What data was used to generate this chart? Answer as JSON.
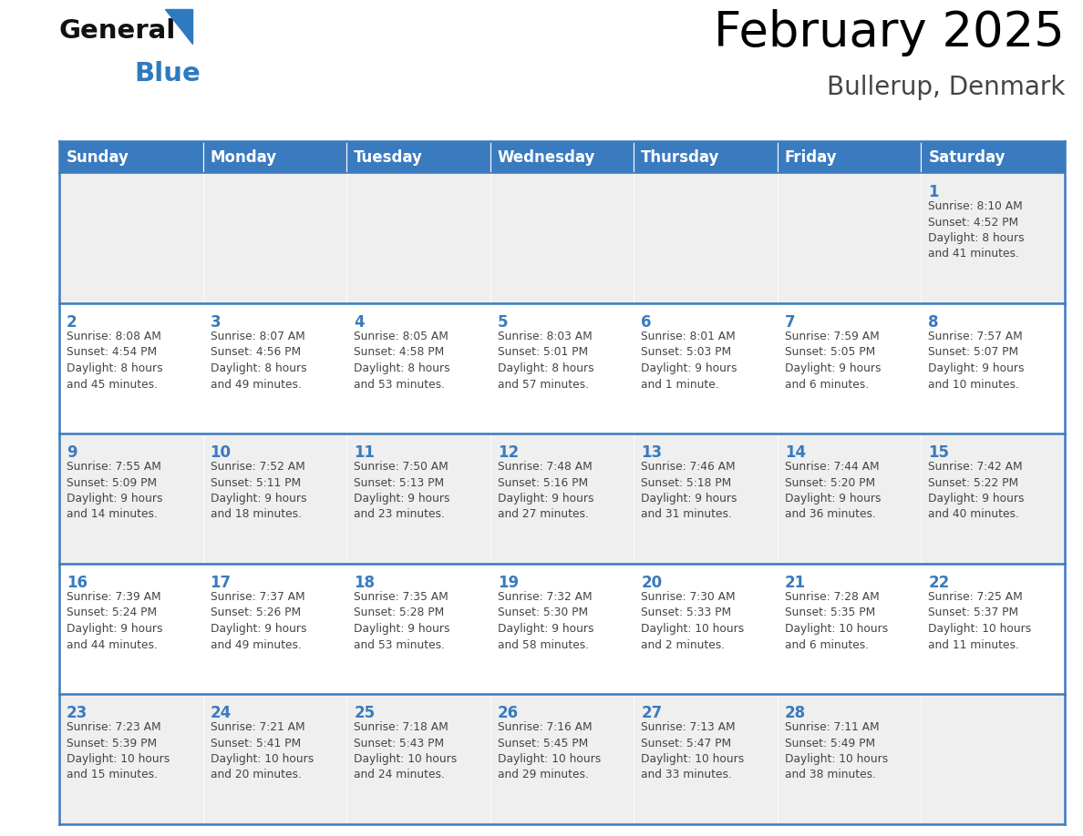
{
  "title": "February 2025",
  "subtitle": "Bullerup, Denmark",
  "days_of_week": [
    "Sunday",
    "Monday",
    "Tuesday",
    "Wednesday",
    "Thursday",
    "Friday",
    "Saturday"
  ],
  "header_bg_color": "#3a7abf",
  "header_text_color": "#ffffff",
  "cell_bg_odd": "#efefef",
  "cell_bg_even": "#ffffff",
  "day_number_color": "#3a7abf",
  "info_text_color": "#444444",
  "border_color": "#3a7abf",
  "title_color": "#000000",
  "subtitle_color": "#444444",
  "logo_general_color": "#111111",
  "logo_blue_color": "#2e7abf",
  "calendar_data": [
    [
      null,
      null,
      null,
      null,
      null,
      null,
      {
        "day": 1,
        "sunrise": "8:10 AM",
        "sunset": "4:52 PM",
        "daylight": "8 hours\nand 41 minutes."
      }
    ],
    [
      {
        "day": 2,
        "sunrise": "8:08 AM",
        "sunset": "4:54 PM",
        "daylight": "8 hours\nand 45 minutes."
      },
      {
        "day": 3,
        "sunrise": "8:07 AM",
        "sunset": "4:56 PM",
        "daylight": "8 hours\nand 49 minutes."
      },
      {
        "day": 4,
        "sunrise": "8:05 AM",
        "sunset": "4:58 PM",
        "daylight": "8 hours\nand 53 minutes."
      },
      {
        "day": 5,
        "sunrise": "8:03 AM",
        "sunset": "5:01 PM",
        "daylight": "8 hours\nand 57 minutes."
      },
      {
        "day": 6,
        "sunrise": "8:01 AM",
        "sunset": "5:03 PM",
        "daylight": "9 hours\nand 1 minute."
      },
      {
        "day": 7,
        "sunrise": "7:59 AM",
        "sunset": "5:05 PM",
        "daylight": "9 hours\nand 6 minutes."
      },
      {
        "day": 8,
        "sunrise": "7:57 AM",
        "sunset": "5:07 PM",
        "daylight": "9 hours\nand 10 minutes."
      }
    ],
    [
      {
        "day": 9,
        "sunrise": "7:55 AM",
        "sunset": "5:09 PM",
        "daylight": "9 hours\nand 14 minutes."
      },
      {
        "day": 10,
        "sunrise": "7:52 AM",
        "sunset": "5:11 PM",
        "daylight": "9 hours\nand 18 minutes."
      },
      {
        "day": 11,
        "sunrise": "7:50 AM",
        "sunset": "5:13 PM",
        "daylight": "9 hours\nand 23 minutes."
      },
      {
        "day": 12,
        "sunrise": "7:48 AM",
        "sunset": "5:16 PM",
        "daylight": "9 hours\nand 27 minutes."
      },
      {
        "day": 13,
        "sunrise": "7:46 AM",
        "sunset": "5:18 PM",
        "daylight": "9 hours\nand 31 minutes."
      },
      {
        "day": 14,
        "sunrise": "7:44 AM",
        "sunset": "5:20 PM",
        "daylight": "9 hours\nand 36 minutes."
      },
      {
        "day": 15,
        "sunrise": "7:42 AM",
        "sunset": "5:22 PM",
        "daylight": "9 hours\nand 40 minutes."
      }
    ],
    [
      {
        "day": 16,
        "sunrise": "7:39 AM",
        "sunset": "5:24 PM",
        "daylight": "9 hours\nand 44 minutes."
      },
      {
        "day": 17,
        "sunrise": "7:37 AM",
        "sunset": "5:26 PM",
        "daylight": "9 hours\nand 49 minutes."
      },
      {
        "day": 18,
        "sunrise": "7:35 AM",
        "sunset": "5:28 PM",
        "daylight": "9 hours\nand 53 minutes."
      },
      {
        "day": 19,
        "sunrise": "7:32 AM",
        "sunset": "5:30 PM",
        "daylight": "9 hours\nand 58 minutes."
      },
      {
        "day": 20,
        "sunrise": "7:30 AM",
        "sunset": "5:33 PM",
        "daylight": "10 hours\nand 2 minutes."
      },
      {
        "day": 21,
        "sunrise": "7:28 AM",
        "sunset": "5:35 PM",
        "daylight": "10 hours\nand 6 minutes."
      },
      {
        "day": 22,
        "sunrise": "7:25 AM",
        "sunset": "5:37 PM",
        "daylight": "10 hours\nand 11 minutes."
      }
    ],
    [
      {
        "day": 23,
        "sunrise": "7:23 AM",
        "sunset": "5:39 PM",
        "daylight": "10 hours\nand 15 minutes."
      },
      {
        "day": 24,
        "sunrise": "7:21 AM",
        "sunset": "5:41 PM",
        "daylight": "10 hours\nand 20 minutes."
      },
      {
        "day": 25,
        "sunrise": "7:18 AM",
        "sunset": "5:43 PM",
        "daylight": "10 hours\nand 24 minutes."
      },
      {
        "day": 26,
        "sunrise": "7:16 AM",
        "sunset": "5:45 PM",
        "daylight": "10 hours\nand 29 minutes."
      },
      {
        "day": 27,
        "sunrise": "7:13 AM",
        "sunset": "5:47 PM",
        "daylight": "10 hours\nand 33 minutes."
      },
      {
        "day": 28,
        "sunrise": "7:11 AM",
        "sunset": "5:49 PM",
        "daylight": "10 hours\nand 38 minutes."
      },
      null
    ]
  ]
}
